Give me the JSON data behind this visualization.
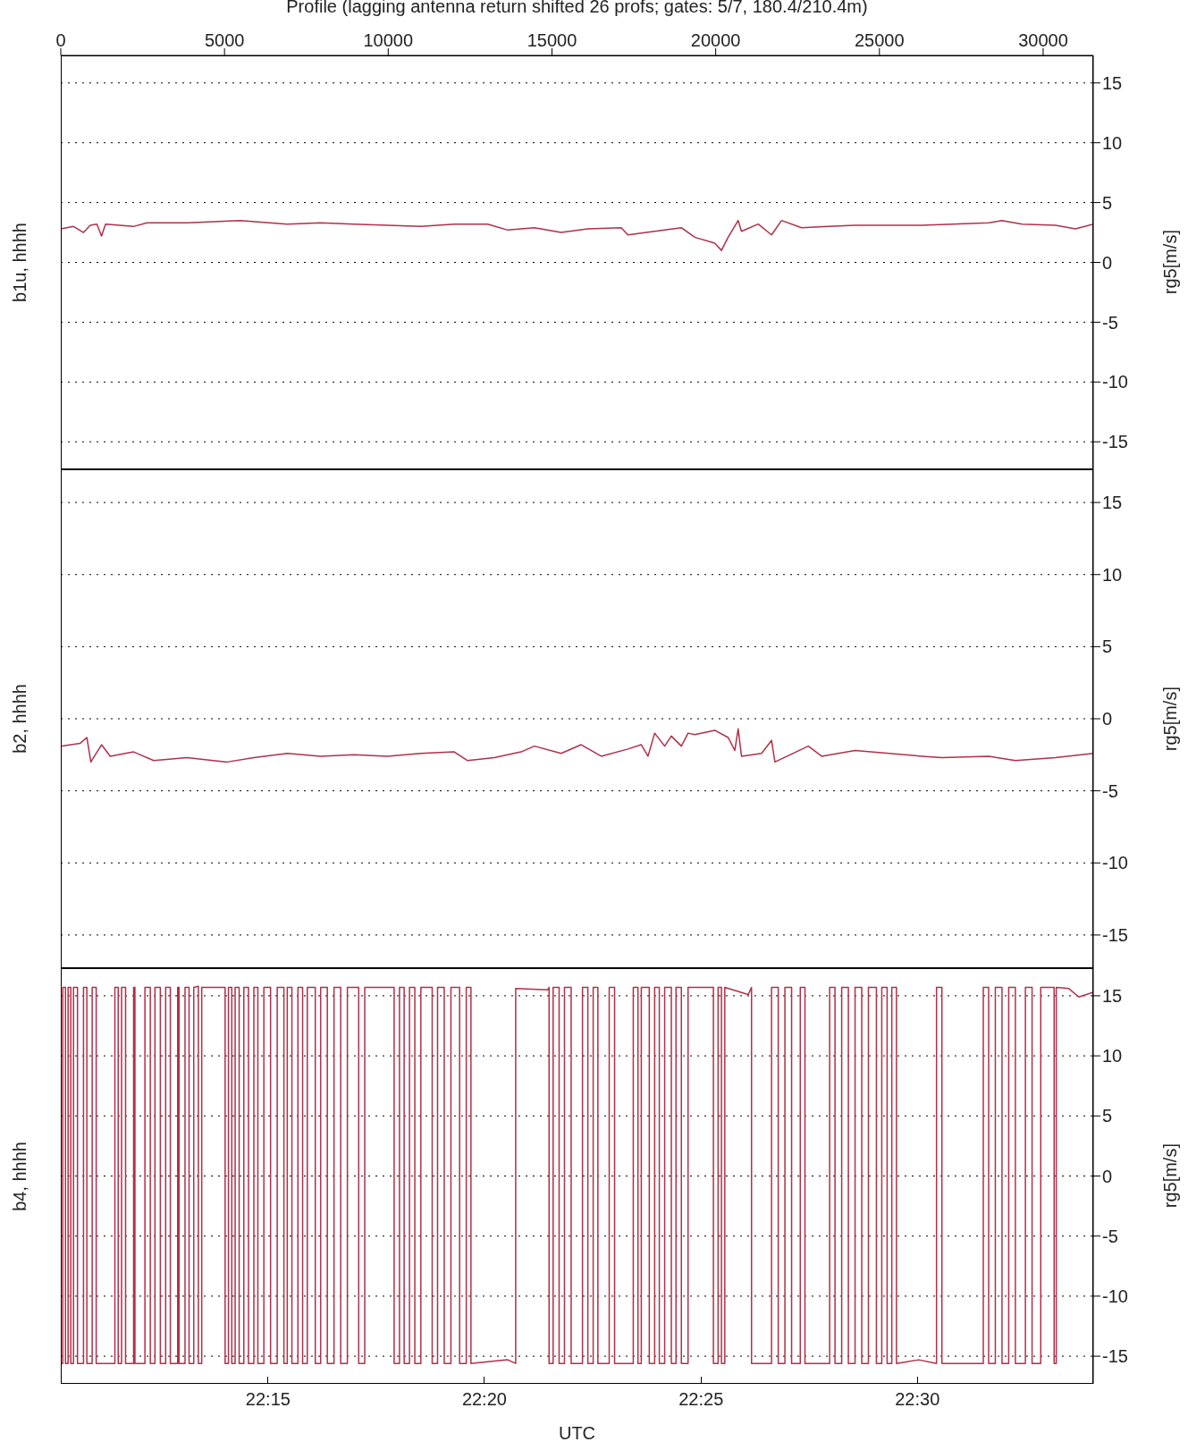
{
  "chart_data": [
    {
      "type": "line",
      "title": "b1u, hhhh",
      "xlabel": "Profile (lagging antenna return shifted 26 profs; gates: 5/7, 180.4/210.4m)",
      "ylabel": "rg5[m/s]",
      "color": "#b03048",
      "grid": "y",
      "xlim": [
        0,
        31530
      ],
      "xticks": [
        0,
        5000,
        10000,
        15000,
        20000,
        25000,
        30000
      ],
      "ylim": [
        -17.3,
        17.3
      ],
      "yticks": [
        -15,
        -10,
        -5,
        0,
        5,
        10,
        15
      ],
      "x": [
        0,
        388,
        694,
        898,
        1102,
        1244,
        1367,
        2224,
        2632,
        3856,
        5488,
        6916,
        7936,
        8956,
        9976,
        10996,
        12016,
        13036,
        13648,
        14464,
        15280,
        16096,
        17116,
        17320,
        18136,
        18952,
        19360,
        19972,
        20176,
        20380,
        20686,
        20788,
        21298,
        21706,
        22012,
        22624,
        23440,
        24256,
        26296,
        28336,
        28744,
        29356,
        30376,
        30988,
        31530
      ],
      "values": [
        2.8,
        3.0,
        2.5,
        3.1,
        3.2,
        2.2,
        3.2,
        3.0,
        3.3,
        3.3,
        3.5,
        3.2,
        3.3,
        3.2,
        3.1,
        3.0,
        3.2,
        3.2,
        2.7,
        2.9,
        2.5,
        2.8,
        2.9,
        2.3,
        2.6,
        2.9,
        2.1,
        1.6,
        1.0,
        2.1,
        3.5,
        2.6,
        3.2,
        2.3,
        3.5,
        2.9,
        3.0,
        3.1,
        3.1,
        3.3,
        3.5,
        3.2,
        3.1,
        2.8,
        3.2
      ]
    },
    {
      "type": "line",
      "title": "b2, hhhh",
      "ylabel": "rg5[m/s]",
      "color": "#b03048",
      "grid": "y",
      "tick_labels": "y",
      "xlim": [
        0,
        31530
      ],
      "xticks": [
        0,
        5000,
        10000,
        15000,
        20000,
        25000,
        30000
      ],
      "ylim": [
        -17.3,
        17.3
      ],
      "yticks": [
        -15,
        -10,
        -5,
        0,
        5,
        10,
        15
      ],
      "x": [
        0,
        592,
        796,
        918,
        1244,
        1510,
        2224,
        2836,
        3856,
        5080,
        5896,
        6916,
        7936,
        8956,
        9976,
        10996,
        12016,
        12424,
        13240,
        14056,
        14464,
        15280,
        15892,
        16504,
        17320,
        17728,
        17932,
        18136,
        18442,
        18646,
        18952,
        19156,
        19360,
        19972,
        20380,
        20584,
        20686,
        20788,
        21400,
        21706,
        21808,
        22828,
        23236,
        24256,
        26296,
        26908,
        28336,
        29152,
        30376,
        31530
      ],
      "values": [
        -1.9,
        -1.7,
        -1.3,
        -3.0,
        -1.8,
        -2.6,
        -2.3,
        -2.9,
        -2.7,
        -3.0,
        -2.7,
        -2.4,
        -2.6,
        -2.5,
        -2.6,
        -2.4,
        -2.3,
        -2.9,
        -2.7,
        -2.3,
        -1.9,
        -2.4,
        -1.8,
        -2.6,
        -2.1,
        -1.8,
        -2.6,
        -1.0,
        -1.9,
        -1.2,
        -1.9,
        -1.0,
        -1.1,
        -0.8,
        -1.3,
        -2.2,
        -0.7,
        -2.6,
        -2.4,
        -1.5,
        -3.0,
        -1.9,
        -2.6,
        -2.2,
        -2.6,
        -2.7,
        -2.6,
        -2.9,
        -2.7,
        -2.4
      ]
    },
    {
      "type": "line",
      "title": "b4, hhhh",
      "ylabel": "rg5[m/s]",
      "x2label": "UTC",
      "color": "#b03048",
      "grid": "y",
      "tick_labels": "y",
      "xlim": [
        0,
        31530
      ],
      "xticks": [
        0,
        5000,
        10000,
        15000,
        20000,
        25000,
        30000
      ],
      "x2lim": [
        22.1702,
        22.5677
      ],
      "x2ticks": [
        {
          "value": 22.25,
          "label": "22:15"
        },
        {
          "value": 22.3333,
          "label": "22:20"
        },
        {
          "value": 22.4167,
          "label": "22:25"
        },
        {
          "value": 22.5,
          "label": "22:30"
        }
      ],
      "ylim": [
        -17.3,
        17.3
      ],
      "yticks": [
        -15,
        -10,
        -5,
        0,
        5,
        10,
        15
      ],
      "x": [
        0,
        0,
        61,
        61,
        143,
        143,
        224,
        224,
        306,
        306,
        388,
        388,
        510,
        510,
        694,
        694,
        796,
        796,
        959,
        959,
        1081,
        1081,
        1652,
        1652,
        1754,
        1754,
        1856,
        1856,
        1979,
        1979,
        2224,
        2224,
        2264,
        2264,
        2570,
        2570,
        2734,
        2734,
        2876,
        2876,
        3040,
        3040,
        3203,
        3203,
        3346,
        3346,
        3570,
        3570,
        3611,
        3611,
        3794,
        3794,
        3917,
        3917,
        4060,
        4060,
        4202,
        4202,
        4304,
        4304,
        5018,
        5018,
        5120,
        5120,
        5222,
        5222,
        5324,
        5324,
        5447,
        5447,
        5590,
        5590,
        5732,
        5732,
        5896,
        5896,
        6018,
        6018,
        6202,
        6202,
        6406,
        6406,
        6610,
        6610,
        6814,
        6814,
        6916,
        6916,
        7058,
        7058,
        7242,
        7242,
        7385,
        7385,
        7528,
        7528,
        7772,
        7772,
        7936,
        7936,
        8140,
        8140,
        8344,
        8344,
        8548,
        8548,
        8752,
        8752,
        9098,
        9098,
        9282,
        9282,
        10180,
        10180,
        10343,
        10343,
        10486,
        10486,
        10649,
        10649,
        10812,
        10812,
        10996,
        10996,
        11342,
        11342,
        11506,
        11506,
        11710,
        11710,
        11914,
        11914,
        12179,
        12179,
        12383,
        12383,
        12526,
        12526,
        13240,
        13648,
        13892,
        13892,
        14872,
        14912,
        14912,
        15035,
        15035,
        15218,
        15218,
        15382,
        15382,
        15586,
        15586,
        15932,
        15932,
        16096,
        16096,
        16259,
        16259,
        16402,
        16402,
        16748,
        16748,
        16912,
        16912,
        17483,
        17483,
        17626,
        17626,
        17728,
        17728,
        17972,
        17972,
        18136,
        18136,
        18278,
        18278,
        18442,
        18442,
        18646,
        18646,
        18788,
        18788,
        18952,
        18952,
        19156,
        19156,
        19931,
        19931,
        20074,
        20074,
        20176,
        20176,
        20278,
        20278,
        20992,
        21094,
        21094,
        21706,
        21706,
        21910,
        21910,
        22114,
        22114,
        22318,
        22318,
        22583,
        22583,
        22726,
        22726,
        23480,
        23480,
        23644,
        23644,
        23848,
        23848,
        24052,
        24052,
        24256,
        24256,
        24460,
        24460,
        24664,
        24664,
        24908,
        24908,
        25072,
        25072,
        25235,
        25235,
        25378,
        25378,
        25520,
        25520,
        26200,
        26744,
        26744,
        26908,
        26908,
        28172,
        28172,
        28336,
        28336,
        28540,
        28540,
        28744,
        28744,
        28948,
        28948,
        29152,
        29152,
        29458,
        29458,
        29662,
        29662,
        29927,
        29927,
        30335,
        30335,
        30400,
        30400,
        30784,
        31090,
        31530
      ],
      "values": [
        15.7,
        -15.6,
        -15.6,
        15.7,
        15.7,
        -15.6,
        -15.6,
        15.7,
        15.7,
        -15.6,
        -15.6,
        15.7,
        15.7,
        -15.6,
        -15.6,
        15.7,
        15.7,
        -15.6,
        -15.6,
        15.7,
        15.7,
        -15.6,
        -15.6,
        15.7,
        15.7,
        -15.6,
        -15.6,
        15.7,
        15.7,
        -15.6,
        -15.6,
        15.7,
        15.7,
        -15.6,
        -15.6,
        15.7,
        15.7,
        -15.6,
        -15.6,
        15.7,
        15.7,
        -15.6,
        -15.6,
        15.7,
        15.7,
        -15.6,
        -15.6,
        15.7,
        15.7,
        -15.6,
        -15.6,
        15.7,
        15.7,
        -15.6,
        -15.6,
        15.7,
        15.8,
        -15.6,
        -15.6,
        15.7,
        15.7,
        -15.6,
        -15.6,
        15.7,
        15.7,
        -15.6,
        -15.6,
        15.7,
        15.7,
        -15.6,
        -15.6,
        15.7,
        15.7,
        -15.6,
        -15.6,
        15.7,
        15.7,
        -15.6,
        -15.6,
        15.7,
        15.7,
        -15.6,
        -15.6,
        15.7,
        15.7,
        -15.6,
        -15.6,
        15.7,
        15.7,
        -15.6,
        -15.6,
        15.7,
        15.7,
        -15.6,
        -15.6,
        15.7,
        15.7,
        -15.6,
        -15.6,
        15.7,
        15.7,
        -15.6,
        -15.6,
        15.7,
        15.7,
        -15.6,
        -15.6,
        15.7,
        15.7,
        -15.6,
        -15.6,
        15.7,
        15.7,
        -15.6,
        -15.6,
        15.7,
        15.7,
        -15.6,
        -15.6,
        15.7,
        15.7,
        -15.6,
        -15.6,
        15.7,
        15.7,
        -15.6,
        -15.6,
        15.7,
        15.7,
        -15.6,
        -15.6,
        15.7,
        15.7,
        -15.6,
        -15.6,
        15.7,
        15.7,
        -15.6,
        -15.4,
        -15.3,
        -15.6,
        15.6,
        15.5,
        15.7,
        -15.6,
        -15.6,
        15.7,
        15.7,
        -15.6,
        -15.6,
        15.7,
        15.7,
        -15.6,
        -15.6,
        15.7,
        15.7,
        -15.6,
        -15.6,
        15.7,
        15.7,
        -15.6,
        -15.6,
        15.7,
        15.7,
        -15.6,
        -15.6,
        15.7,
        15.7,
        -15.6,
        -15.6,
        15.7,
        15.7,
        -15.6,
        -15.6,
        15.7,
        15.7,
        -15.6,
        -15.6,
        15.7,
        15.7,
        -15.6,
        -15.6,
        15.7,
        15.7,
        -15.6,
        -15.6,
        15.7,
        15.7,
        -15.6,
        -15.6,
        15.7,
        15.7,
        -15.6,
        -15.6,
        15.7,
        15.1,
        15.7,
        -15.6,
        -15.6,
        15.7,
        15.7,
        -15.6,
        -15.6,
        15.7,
        15.7,
        -15.6,
        -15.6,
        15.7,
        15.7,
        -15.6,
        -15.6,
        15.7,
        15.7,
        -15.6,
        -15.6,
        15.7,
        15.7,
        -15.6,
        -15.6,
        15.7,
        15.7,
        -15.6,
        -15.6,
        15.7,
        15.7,
        -15.6,
        -15.6,
        15.7,
        15.7,
        -15.6,
        -15.6,
        15.7,
        15.7,
        -15.6,
        -15.3,
        -15.6,
        15.7,
        15.7,
        -15.6,
        -15.6,
        15.7,
        15.7,
        -15.6,
        -15.6,
        15.7,
        15.7,
        -15.6,
        -15.6,
        15.7,
        15.7,
        -15.6,
        -15.6,
        15.7,
        15.7,
        -15.6,
        -15.6,
        15.7,
        15.7,
        -15.6,
        -15.6,
        15.7,
        15.6,
        14.9,
        15.3
      ]
    }
  ]
}
